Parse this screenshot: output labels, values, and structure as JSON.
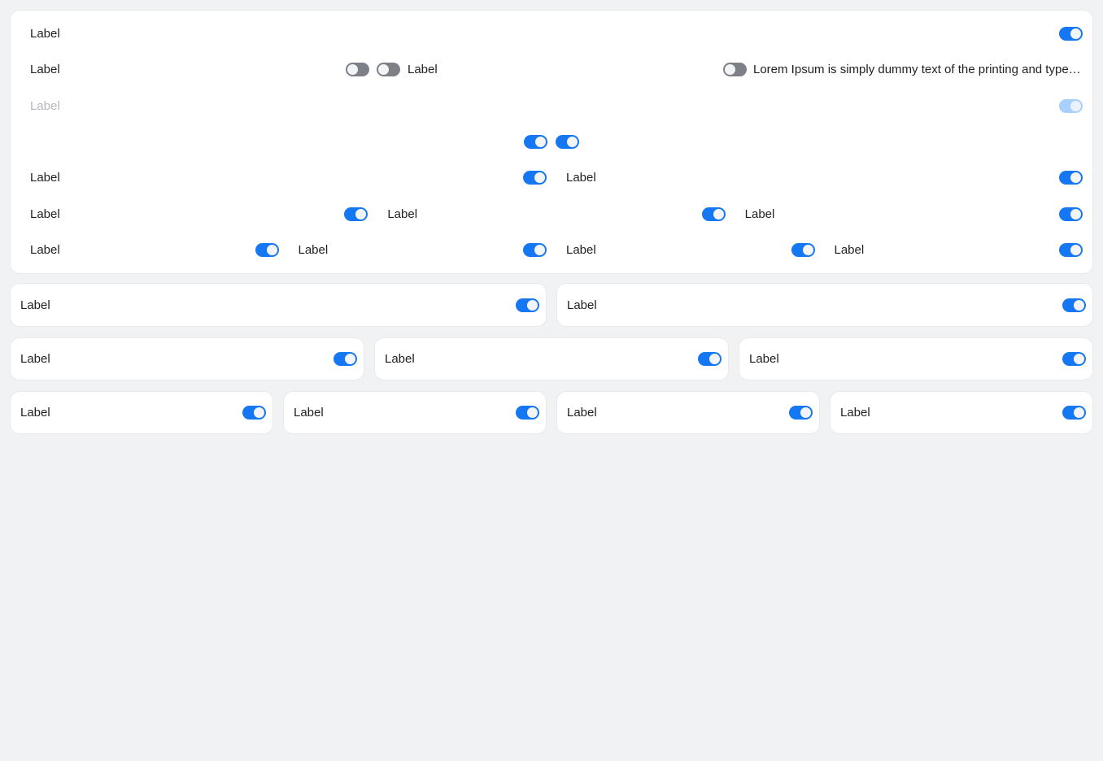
{
  "colors": {
    "page_background": "#f1f2f4",
    "card_background": "#ffffff",
    "card_border": "#e8eaee",
    "text": "#1e1f21",
    "text_disabled": "#b5b7bb",
    "switch_on_track": "#1677f2",
    "switch_off_track": "#7d8187",
    "switch_knob": "#f3f4f6",
    "switch_disabled_track": "#a8d0fb",
    "switch_disabled_knob": "#e9f2fd"
  },
  "switch_panel": {
    "row_basic": {
      "label": "Label",
      "switch_state": "on"
    },
    "row_inline": {
      "label": "Label",
      "switch1_state": "off",
      "switch2_state": "off",
      "switch2_label": "Label",
      "lorem_switch_state": "off",
      "lorem_text": "Lorem Ipsum is simply dummy text of the printing and typesetting industry."
    },
    "row_disabled": {
      "label": "Label",
      "switch_state": "on-disabled"
    },
    "row_centered": {
      "switch1_state": "on",
      "switch2_state": "on"
    },
    "grid2": [
      {
        "label": "Label",
        "switch_state": "on"
      },
      {
        "label": "Label",
        "switch_state": "on"
      }
    ],
    "grid3": [
      {
        "label": "Label",
        "switch_state": "on"
      },
      {
        "label": "Label",
        "switch_state": "on"
      },
      {
        "label": "Label",
        "switch_state": "on"
      }
    ],
    "grid4": [
      {
        "label": "Label",
        "switch_state": "on"
      },
      {
        "label": "Label",
        "switch_state": "on"
      },
      {
        "label": "Label",
        "switch_state": "on"
      },
      {
        "label": "Label",
        "switch_state": "on"
      }
    ]
  },
  "cards": {
    "row2": [
      {
        "label": "Label",
        "switch_state": "on"
      },
      {
        "label": "Label",
        "switch_state": "on"
      }
    ],
    "row3": [
      {
        "label": "Label",
        "switch_state": "on"
      },
      {
        "label": "Label",
        "switch_state": "on"
      },
      {
        "label": "Label",
        "switch_state": "on"
      }
    ],
    "row4": [
      {
        "label": "Label",
        "switch_state": "on"
      },
      {
        "label": "Label",
        "switch_state": "on"
      },
      {
        "label": "Label",
        "switch_state": "on"
      },
      {
        "label": "Label",
        "switch_state": "on"
      }
    ]
  }
}
